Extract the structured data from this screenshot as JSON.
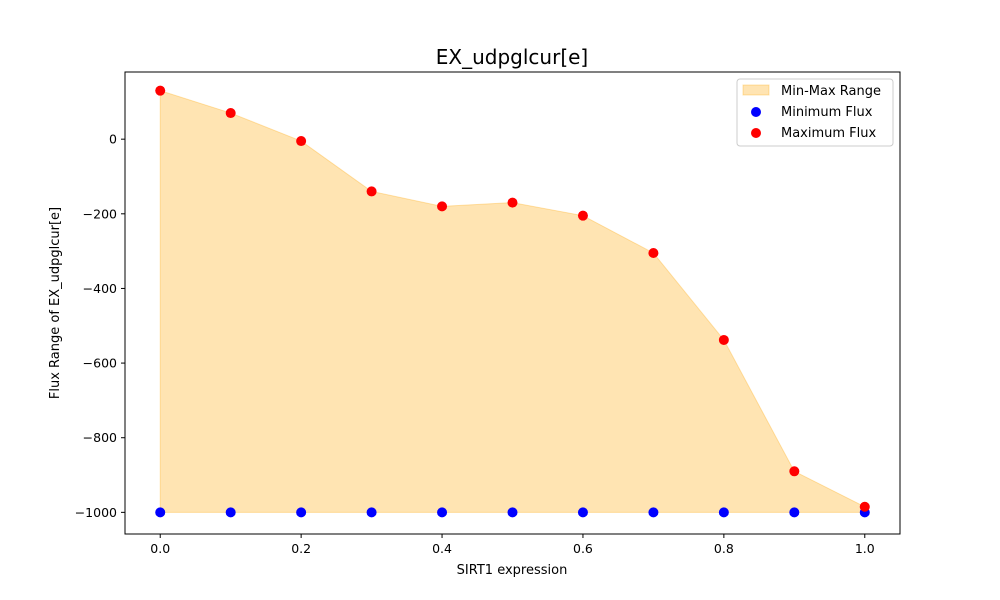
{
  "chart_data": {
    "type": "area",
    "title": "EX_udpglcur[e]",
    "xlabel": "SIRT1 expression",
    "ylabel": "Flux Range of EX_udpglcur[e]",
    "xlim": [
      -0.05,
      1.05
    ],
    "ylim": [
      -1058,
      180
    ],
    "xticks": [
      0.0,
      0.2,
      0.4,
      0.6,
      0.8,
      1.0
    ],
    "xtick_labels": [
      "0.0",
      "0.2",
      "0.4",
      "0.6",
      "0.8",
      "1.0"
    ],
    "yticks": [
      -1000,
      -800,
      -600,
      -400,
      -200,
      0
    ],
    "ytick_labels": [
      "−1000",
      "−800",
      "−600",
      "−400",
      "−200",
      "0"
    ],
    "x": [
      0.0,
      0.1,
      0.2,
      0.3,
      0.4,
      0.5,
      0.6,
      0.7,
      0.8,
      0.9,
      1.0
    ],
    "series": [
      {
        "name": "Minimum Flux",
        "kind": "scatter",
        "color": "#0000ff",
        "values": [
          -1000,
          -1000,
          -1000,
          -1000,
          -1000,
          -1000,
          -1000,
          -1000,
          -1000,
          -1000,
          -1000
        ]
      },
      {
        "name": "Maximum Flux",
        "kind": "scatter",
        "color": "#ff0000",
        "values": [
          130,
          70,
          -5,
          -140,
          -180,
          -170,
          -205,
          -305,
          -538,
          -890,
          -985
        ]
      }
    ],
    "fill": {
      "name": "Min-Max Range",
      "color": "#ffa500",
      "opacity": 0.3,
      "edge_color": "#ffa500"
    },
    "legend_position": "upper right",
    "grid": false
  }
}
